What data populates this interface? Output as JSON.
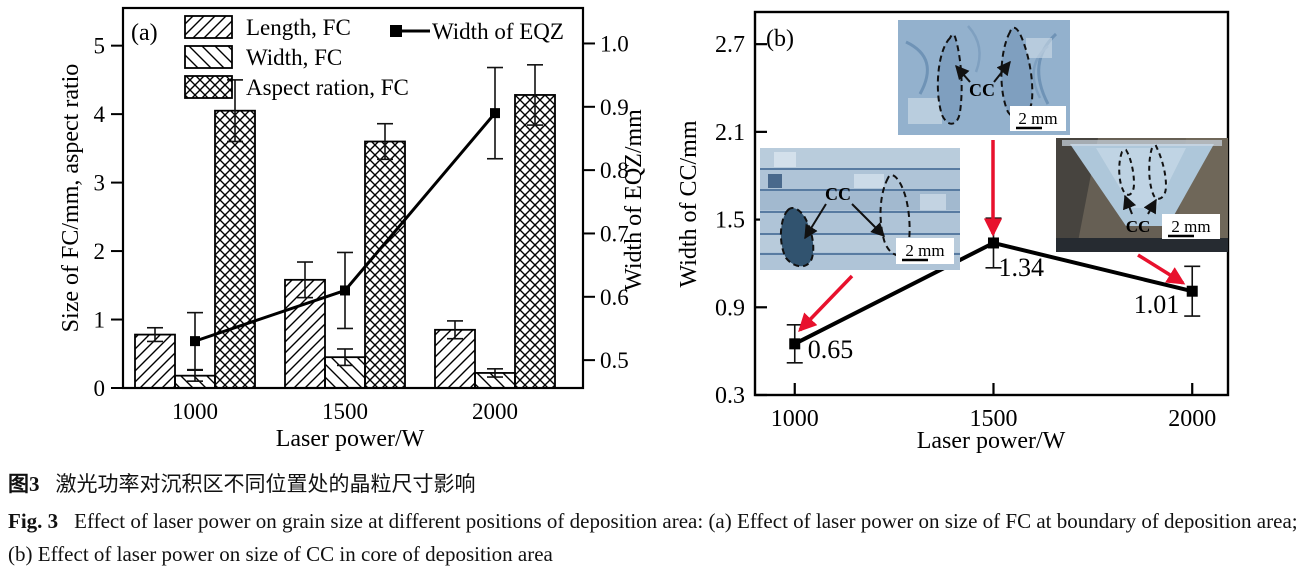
{
  "caption": {
    "zh_label": "图3",
    "zh_text": "激光功率对沉积区不同位置处的晶粒尺寸影响",
    "en_label": "Fig. 3",
    "en_text": "Effect of laser power on grain size at different positions of deposition area: (a) Effect of laser power on size of FC at boundary of deposition area; (b) Effect of laser power on size of CC in core of deposition area"
  },
  "chart_data": [
    {
      "panel": "(a)",
      "type": "bar",
      "categories": [
        "1000",
        "1500",
        "2000"
      ],
      "bar_series": [
        {
          "name": "Length, FC",
          "hatch": "diag-up",
          "values": [
            0.78,
            1.58,
            0.85
          ],
          "errors": [
            0.1,
            0.26,
            0.13
          ]
        },
        {
          "name": "Width, FC",
          "hatch": "diag-down",
          "values": [
            0.18,
            0.45,
            0.22
          ],
          "errors": [
            0.08,
            0.12,
            0.06
          ]
        },
        {
          "name": "Aspect ration, FC",
          "hatch": "cross",
          "values": [
            4.05,
            3.6,
            4.28
          ],
          "errors": [
            0.45,
            0.26,
            0.44
          ]
        }
      ],
      "line_series": {
        "name": "Width of EQZ",
        "axis": "right",
        "values": [
          0.53,
          0.61,
          0.89
        ],
        "errors": [
          0.045,
          0.06,
          0.072
        ]
      },
      "xlabel": "Laser power/W",
      "ylabel_left": "Size of FC/mm, aspect ratio",
      "ylabel_right": "Width of EQZ/mm",
      "yticks_left": [
        0,
        1,
        2,
        3,
        4,
        5
      ],
      "ylim_left": [
        0,
        5.55
      ],
      "yticks_right": [
        0.5,
        0.6,
        0.7,
        0.8,
        0.9,
        1.0
      ],
      "ylim_right": [
        0.456,
        1.056
      ],
      "legend_position": "top-left-inside",
      "grid": false,
      "colors": {
        "ink": "#000000"
      }
    },
    {
      "panel": "(b)",
      "type": "line",
      "x": [
        1000,
        1500,
        2000
      ],
      "xtick_labels": [
        "1000",
        "1500",
        "2000"
      ],
      "values": [
        0.65,
        1.34,
        1.01
      ],
      "errors": [
        0.13,
        0.17,
        0.17
      ],
      "point_labels": [
        "0.65",
        "1.34",
        "1.01"
      ],
      "xlabel": "Laser power/W",
      "ylabel": "Width of CC/mm",
      "yticks": [
        0.3,
        0.9,
        1.5,
        2.1,
        2.7
      ],
      "ylim": [
        0.3,
        2.92
      ],
      "xlim": [
        900,
        2090
      ],
      "grid": false,
      "colors": {
        "line": "#000000",
        "arrow": "#e8112d"
      },
      "insets": [
        {
          "label": "CC",
          "scale_label": "2 mm"
        },
        {
          "label": "CC",
          "scale_label": "2 mm"
        },
        {
          "label": "CC",
          "scale_label": "2 mm"
        }
      ]
    }
  ]
}
